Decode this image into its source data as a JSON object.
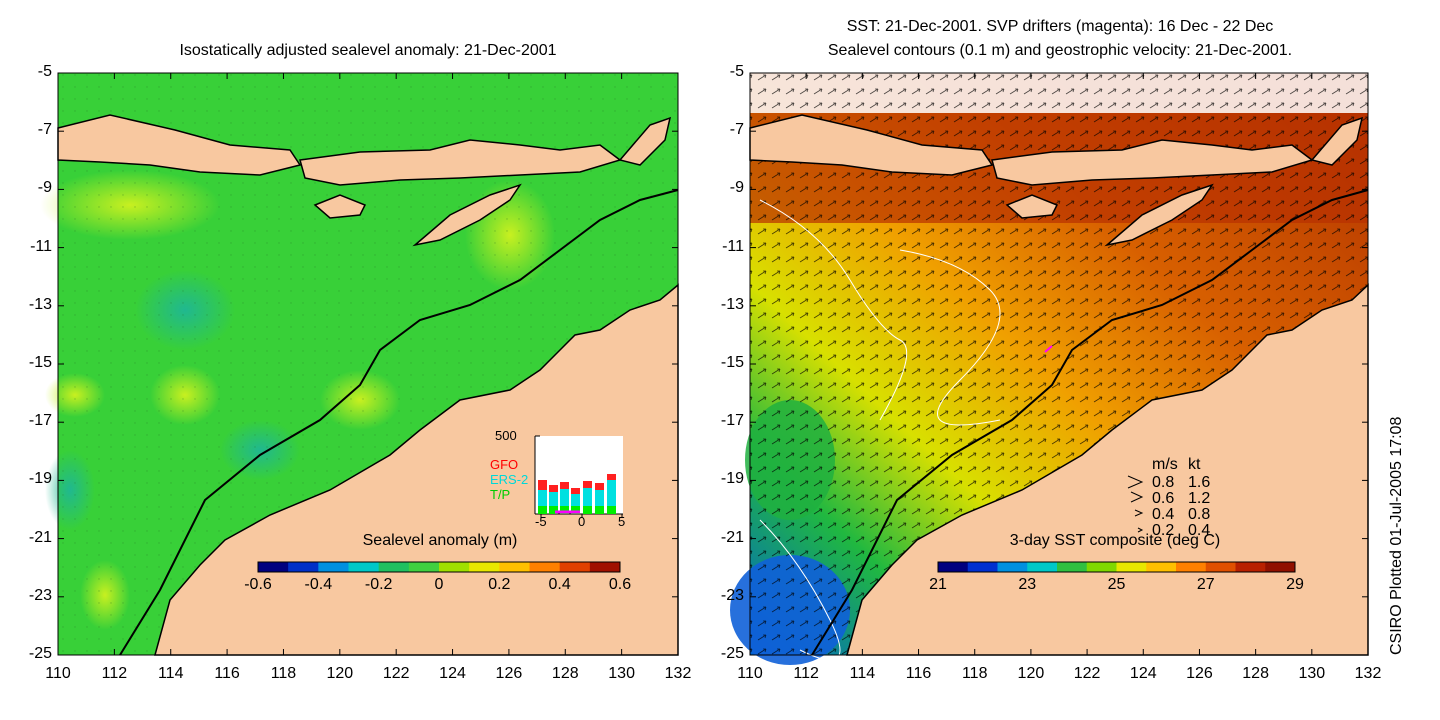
{
  "left_panel": {
    "title": "Isostatically adjusted sealevel anomaly: 21-Dec-2001",
    "colorbar_label": "Sealevel anomaly (m)",
    "colorbar_ticks": [
      "-0.6",
      "-0.4",
      "-0.2",
      "0",
      "0.2",
      "0.4",
      "0.6"
    ],
    "colorbar_colors": [
      "#00007f",
      "#0030c8",
      "#0090e0",
      "#00c8c8",
      "#20c060",
      "#40d040",
      "#a0e000",
      "#e8e800",
      "#ffc000",
      "#ff8000",
      "#e04000",
      "#a01000"
    ],
    "inset": {
      "ymax_label": "500",
      "legend": [
        "GFO",
        "ERS-2",
        "T/P"
      ],
      "legend_colors": [
        "#ff0000",
        "#00e0e0",
        "#00ee00"
      ],
      "x_ticks": [
        "-5",
        "0",
        "5"
      ]
    }
  },
  "right_panel": {
    "title_line1": "SST: 21-Dec-2001. SVP drifters (magenta): 16 Dec - 22 Dec",
    "title_line2": "Sealevel contours (0.1 m) and geostrophic velocity: 21-Dec-2001.",
    "colorbar_label": "3-day SST composite (deg C)",
    "colorbar_ticks": [
      "21",
      "23",
      "25",
      "27",
      "29"
    ],
    "colorbar_colors": [
      "#00007f",
      "#0030d0",
      "#0090e0",
      "#00c8c8",
      "#30c040",
      "#80d800",
      "#e8e800",
      "#ffc000",
      "#ff8000",
      "#e05000",
      "#b82000",
      "#901000"
    ],
    "speed_legend": {
      "header_ms": "m/s",
      "header_kt": "kt",
      "rows": [
        {
          "ms": "0.8",
          "kt": "1.6"
        },
        {
          "ms": "0.6",
          "kt": "1.2"
        },
        {
          "ms": "0.4",
          "kt": "0.8"
        },
        {
          "ms": "0.2",
          "kt": "0.4"
        }
      ]
    }
  },
  "axes": {
    "y_ticks": [
      "-5",
      "-7",
      "-9",
      "-11",
      "-13",
      "-15",
      "-17",
      "-19",
      "-21",
      "-23",
      "-25"
    ],
    "x_ticks": [
      "110",
      "112",
      "114",
      "116",
      "118",
      "120",
      "122",
      "124",
      "126",
      "128",
      "130",
      "132"
    ]
  },
  "footer": "CSIRO Plotted 01-Jul-2005 17:08",
  "colors": {
    "land": "#f8c8a0",
    "ocean_slm": "#38d038",
    "ocean_sst": "#c84800"
  }
}
